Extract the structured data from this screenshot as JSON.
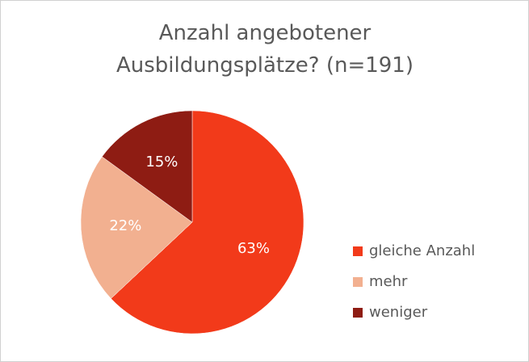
{
  "chart_data": {
    "type": "pie",
    "title": "Anzahl angebotener Ausbildungsplätze? (n=191)",
    "categories": [
      "gleiche Anzahl",
      "mehr",
      "weniger"
    ],
    "values": [
      63,
      22,
      15
    ],
    "value_labels": [
      "63%",
      "22%",
      "15%"
    ],
    "colors": [
      "#f23a1a",
      "#f2b090",
      "#8e1c13"
    ],
    "legend": "right"
  }
}
